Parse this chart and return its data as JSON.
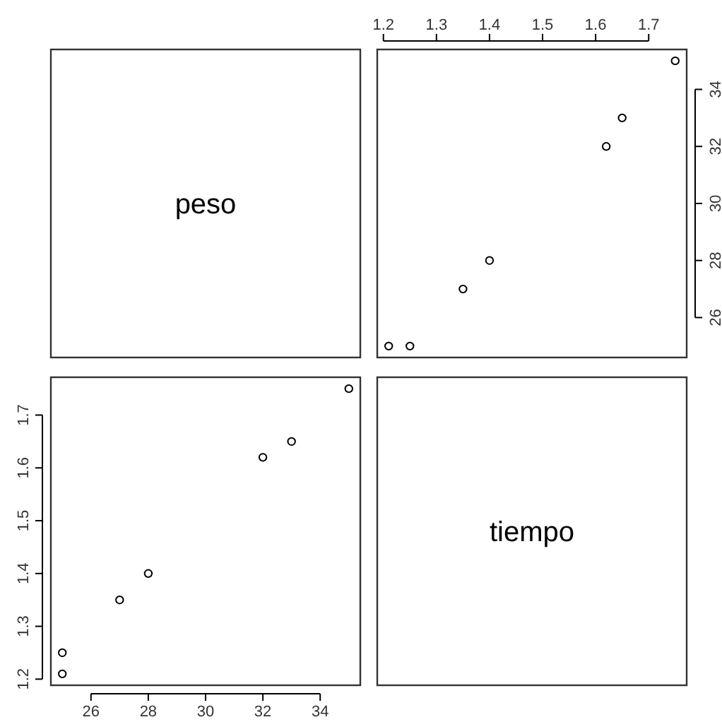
{
  "chart_data": [
    {
      "type": "other",
      "title": "peso"
    },
    {
      "type": "scatter",
      "xlim": [
        1.1884,
        1.7716
      ],
      "xticks": [
        1.2,
        1.3,
        1.4,
        1.5,
        1.6,
        1.7
      ],
      "ylim": [
        24.6,
        35.4
      ],
      "yticks": [
        26,
        28,
        30,
        32,
        34
      ],
      "marker": "circle",
      "series": [
        {
          "color": "#000000",
          "x": [
            1.21,
            1.25,
            1.35,
            1.4,
            1.62,
            1.65,
            1.75
          ],
          "values": [
            25,
            25,
            27,
            28,
            32,
            33,
            35
          ]
        }
      ]
    },
    {
      "type": "scatter",
      "xlim": [
        24.6,
        35.4
      ],
      "xticks": [
        26,
        28,
        30,
        32,
        34
      ],
      "ylim": [
        1.1884,
        1.7716
      ],
      "yticks": [
        1.2,
        1.3,
        1.4,
        1.5,
        1.6,
        1.7
      ],
      "marker": "circle",
      "series": [
        {
          "color": "#000000",
          "x": [
            25,
            25,
            27,
            28,
            32,
            33,
            35
          ],
          "values": [
            1.21,
            1.25,
            1.35,
            1.4,
            1.62,
            1.65,
            1.75
          ]
        }
      ]
    },
    {
      "type": "other",
      "title": "tiempo"
    }
  ]
}
